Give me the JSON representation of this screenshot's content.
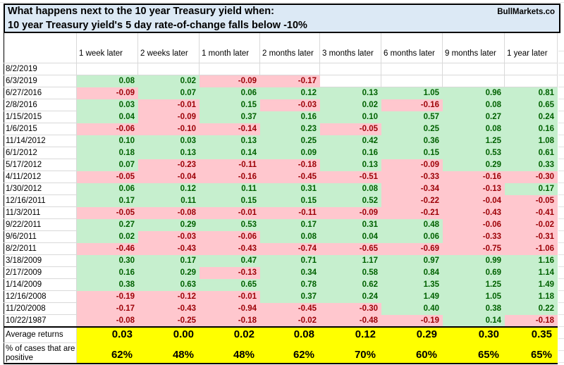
{
  "header": {
    "brand": "BullMarkets.co"
  },
  "chart_data": {
    "type": "table",
    "title_lines": [
      "What happens next to the 10 year Treasury yield when:",
      "10 year Treasury yield's 5 day rate-of-change falls below -10%"
    ],
    "row_header_label": "",
    "columns": [
      "1 week later",
      "2 weeks later",
      "1 month later",
      "2 months later",
      "3 months later",
      "6 months later",
      "9 months later",
      "1 year later"
    ],
    "rows": [
      {
        "date": "8/2/2019",
        "values": [
          "",
          "",
          "",
          "",
          "",
          "",
          "",
          ""
        ]
      },
      {
        "date": "6/3/2019",
        "values": [
          "0.08",
          "0.02",
          "-0.09",
          "-0.17",
          "",
          "",
          "",
          ""
        ]
      },
      {
        "date": "6/27/2016",
        "values": [
          "-0.09",
          "0.07",
          "0.06",
          "0.12",
          "0.13",
          "1.05",
          "0.96",
          "0.81"
        ]
      },
      {
        "date": "2/8/2016",
        "values": [
          "0.03",
          "-0.01",
          "0.15",
          "-0.03",
          "0.02",
          "-0.16",
          "0.08",
          "0.65"
        ]
      },
      {
        "date": "1/15/2015",
        "values": [
          "0.04",
          "-0.09",
          "0.37",
          "0.16",
          "0.10",
          "0.57",
          "0.27",
          "0.24"
        ]
      },
      {
        "date": "1/6/2015",
        "values": [
          "-0.06",
          "-0.10",
          "-0.14",
          "0.23",
          "-0.05",
          "0.25",
          "0.08",
          "0.16"
        ]
      },
      {
        "date": "11/14/2012",
        "values": [
          "0.10",
          "0.03",
          "0.13",
          "0.25",
          "0.42",
          "0.36",
          "1.25",
          "1.08"
        ]
      },
      {
        "date": "6/1/2012",
        "values": [
          "0.18",
          "0.13",
          "0.14",
          "0.09",
          "0.16",
          "0.15",
          "0.53",
          "0.61"
        ]
      },
      {
        "date": "5/17/2012",
        "values": [
          "0.07",
          "-0.23",
          "-0.11",
          "-0.18",
          "0.13",
          "-0.09",
          "0.29",
          "0.33"
        ]
      },
      {
        "date": "4/11/2012",
        "values": [
          "-0.05",
          "-0.04",
          "-0.16",
          "-0.45",
          "-0.51",
          "-0.33",
          "-0.16",
          "-0.30"
        ]
      },
      {
        "date": "1/30/2012",
        "values": [
          "0.06",
          "0.12",
          "0.11",
          "0.31",
          "0.08",
          "-0.34",
          "-0.13",
          "0.17"
        ]
      },
      {
        "date": "12/16/2011",
        "values": [
          "0.17",
          "0.11",
          "0.15",
          "0.15",
          "0.52",
          "-0.22",
          "-0.04",
          "-0.05"
        ]
      },
      {
        "date": "11/3/2011",
        "values": [
          "-0.05",
          "-0.08",
          "-0.01",
          "-0.11",
          "-0.09",
          "-0.21",
          "-0.43",
          "-0.41"
        ]
      },
      {
        "date": "9/22/2011",
        "values": [
          "0.27",
          "0.29",
          "0.53",
          "0.17",
          "0.31",
          "0.48",
          "-0.06",
          "-0.02"
        ]
      },
      {
        "date": "9/6/2011",
        "values": [
          "0.02",
          "-0.03",
          "-0.06",
          "0.08",
          "0.04",
          "0.06",
          "-0.33",
          "-0.31"
        ]
      },
      {
        "date": "8/2/2011",
        "values": [
          "-0.46",
          "-0.43",
          "-0.43",
          "-0.74",
          "-0.65",
          "-0.69",
          "-0.75",
          "-1.06"
        ]
      },
      {
        "date": "3/18/2009",
        "values": [
          "0.30",
          "0.17",
          "0.47",
          "0.71",
          "1.17",
          "0.97",
          "0.99",
          "1.16"
        ]
      },
      {
        "date": "2/17/2009",
        "values": [
          "0.16",
          "0.29",
          "-0.13",
          "0.34",
          "0.58",
          "0.84",
          "0.69",
          "1.14"
        ]
      },
      {
        "date": "1/14/2009",
        "values": [
          "0.38",
          "0.63",
          "0.65",
          "0.78",
          "0.62",
          "1.35",
          "1.25",
          "1.49"
        ]
      },
      {
        "date": "12/16/2008",
        "values": [
          "-0.19",
          "-0.12",
          "-0.01",
          "0.37",
          "0.24",
          "1.49",
          "1.05",
          "1.18"
        ]
      },
      {
        "date": "11/20/2008",
        "values": [
          "-0.17",
          "-0.43",
          "-0.94",
          "-0.45",
          "-0.30",
          "0.40",
          "0.38",
          "0.22"
        ]
      },
      {
        "date": "10/22/1987",
        "values": [
          "-0.08",
          "-0.25",
          "-0.18",
          "-0.02",
          "-0.48",
          "-0.19",
          "0.14",
          "-0.18"
        ]
      }
    ],
    "summary": {
      "average_label": "Average returns",
      "averages": [
        "0.03",
        "0.00",
        "0.02",
        "0.08",
        "0.12",
        "0.29",
        "0.30",
        "0.35"
      ],
      "pct_label": "% of cases that are positive",
      "pct_positive": [
        "62%",
        "48%",
        "48%",
        "62%",
        "70%",
        "60%",
        "65%",
        "65%"
      ]
    }
  },
  "colors": {
    "title_bg": "#dce9f5",
    "positive_bg": "#c6efce",
    "positive_text": "#006100",
    "negative_bg": "#ffc7ce",
    "negative_text": "#9c0006",
    "summary_bg": "#ffff00",
    "border": "#000000",
    "gridline": "#d9d9d9"
  }
}
